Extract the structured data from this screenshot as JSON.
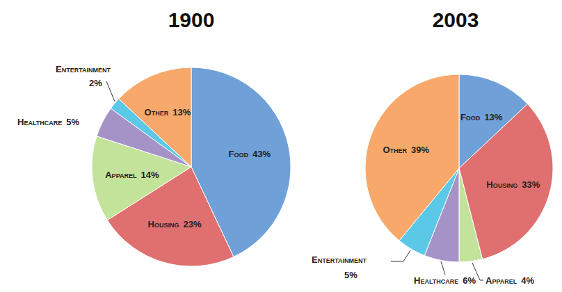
{
  "chart_data": [
    {
      "type": "pie",
      "title": "1900",
      "categories": [
        "Food",
        "Housing",
        "Apparel",
        "Healthcare",
        "Entertainment",
        "Other"
      ],
      "values": [
        43,
        23,
        14,
        5,
        2,
        13
      ],
      "value_labels": [
        "43%",
        "23%",
        "14%",
        "5%",
        "2%",
        "13%"
      ],
      "colors": [
        "#6fa0d8",
        "#e07070",
        "#c4e39a",
        "#a593c8",
        "#5bc8e8",
        "#f7a86a"
      ],
      "data_labels": true
    },
    {
      "type": "pie",
      "title": "2003",
      "categories": [
        "Food",
        "Housing",
        "Apparel",
        "Healthcare",
        "Entertainment",
        "Other"
      ],
      "values": [
        13,
        33,
        4,
        6,
        5,
        39
      ],
      "value_labels": [
        "13%",
        "33%",
        "4%",
        "6%",
        "5%",
        "39%"
      ],
      "colors": [
        "#6fa0d8",
        "#e07070",
        "#c4e39a",
        "#a593c8",
        "#5bc8e8",
        "#f7a86a"
      ],
      "data_labels": true
    }
  ]
}
